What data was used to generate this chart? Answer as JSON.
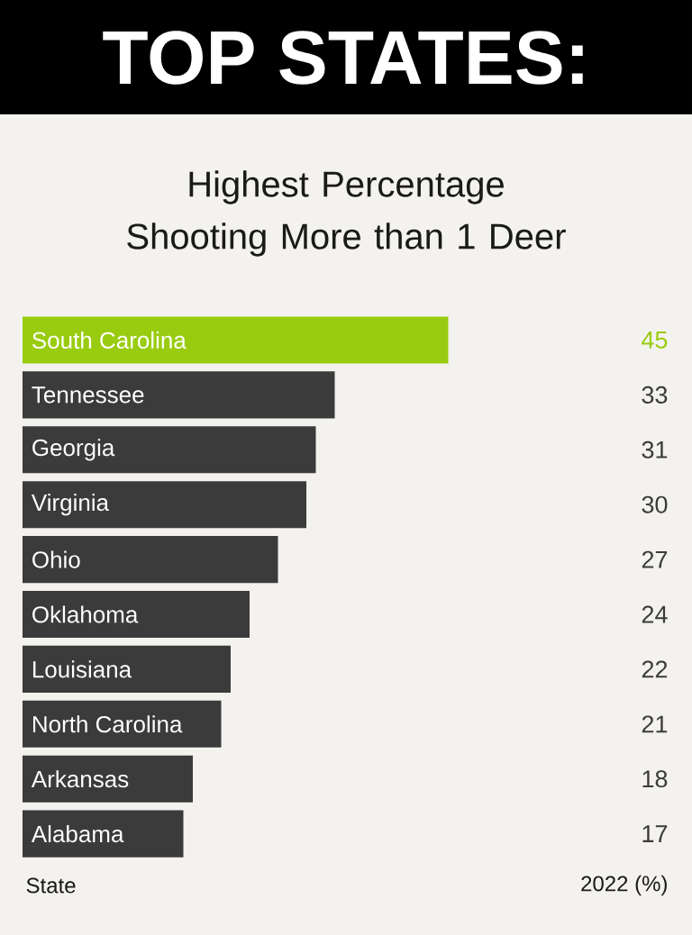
{
  "chart_data": {
    "type": "bar",
    "orientation": "horizontal",
    "title": "TOP STATES:",
    "subtitle": "Highest Percentage Shooting More than 1 Deer",
    "annotations": [
      "State",
      "2022 (%)"
    ],
    "categories": [
      "South Carolina",
      "Tennessee",
      "Georgia",
      "Virginia",
      "Ohio",
      "Oklahoma",
      "Louisiana",
      "North Carolina",
      "Arkansas",
      "Alabama"
    ],
    "values": [
      45,
      33,
      31,
      30,
      27,
      24,
      22,
      21,
      18,
      17
    ],
    "colors": [
      "#99cc11",
      "#3b3b3b",
      "#3b3b3b",
      "#3b3b3b",
      "#3b3b3b",
      "#3b3b3b",
      "#3b3b3b",
      "#3b3b3b",
      "#3b3b3b",
      "#3b3b3b"
    ],
    "data_labels": true
  }
}
